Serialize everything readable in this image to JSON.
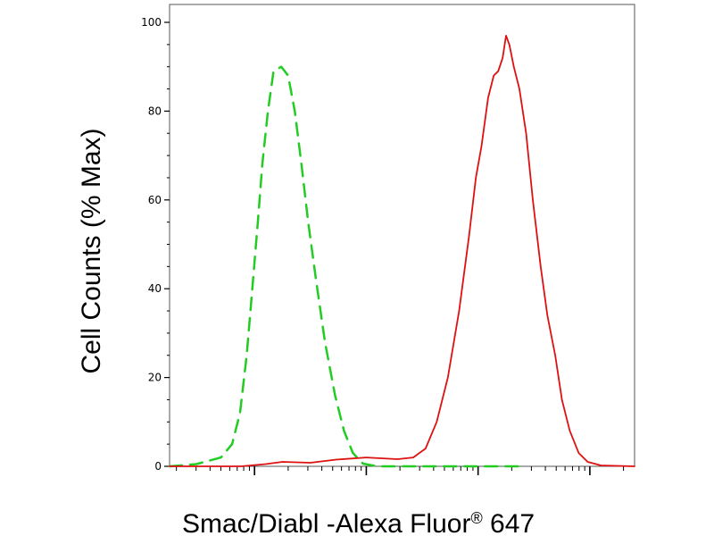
{
  "chart_data": {
    "type": "line",
    "title": "",
    "xlabel": {
      "prefix": "Smac/Diabl -Alexa Fluor",
      "superscript": "®",
      "suffix": " 647"
    },
    "ylabel": "Cell Counts (% Max)",
    "xscale": "log",
    "ylim": [
      0,
      100
    ],
    "yticks": [
      "0",
      "20",
      "40",
      "60",
      "80",
      "100"
    ],
    "grid": false,
    "legend": "none",
    "series": [
      {
        "style": "dashed",
        "color": "#22cc22",
        "points": [
          [
            0.24,
            0
          ],
          [
            0.48,
            0.5
          ],
          [
            0.7,
            2
          ],
          [
            0.8,
            5
          ],
          [
            0.87,
            12
          ],
          [
            0.93,
            25
          ],
          [
            0.98,
            40
          ],
          [
            1.03,
            55
          ],
          [
            1.07,
            68
          ],
          [
            1.12,
            80
          ],
          [
            1.17,
            89
          ],
          [
            1.24,
            90
          ],
          [
            1.3,
            88
          ],
          [
            1.36,
            80
          ],
          [
            1.42,
            68
          ],
          [
            1.48,
            55
          ],
          [
            1.55,
            42
          ],
          [
            1.63,
            28
          ],
          [
            1.72,
            16
          ],
          [
            1.8,
            8
          ],
          [
            1.88,
            3
          ],
          [
            1.97,
            0.6
          ],
          [
            2.1,
            0
          ],
          [
            3.4,
            0
          ]
        ]
      },
      {
        "style": "solid",
        "color": "#dd1111",
        "points": [
          [
            0.24,
            0
          ],
          [
            0.88,
            0
          ],
          [
            1.1,
            0.5
          ],
          [
            1.25,
            1
          ],
          [
            1.5,
            0.8
          ],
          [
            1.73,
            1.5
          ],
          [
            2.0,
            2
          ],
          [
            2.28,
            1.6
          ],
          [
            2.42,
            2
          ],
          [
            2.53,
            4
          ],
          [
            2.63,
            10
          ],
          [
            2.73,
            20
          ],
          [
            2.83,
            35
          ],
          [
            2.92,
            52
          ],
          [
            2.98,
            65
          ],
          [
            3.03,
            72
          ],
          [
            3.09,
            83
          ],
          [
            3.14,
            88
          ],
          [
            3.18,
            89
          ],
          [
            3.22,
            92
          ],
          [
            3.25,
            97
          ],
          [
            3.28,
            95
          ],
          [
            3.32,
            90
          ],
          [
            3.37,
            85
          ],
          [
            3.43,
            75
          ],
          [
            3.49,
            60
          ],
          [
            3.56,
            45
          ],
          [
            3.62,
            34
          ],
          [
            3.69,
            25
          ],
          [
            3.75,
            15
          ],
          [
            3.82,
            8
          ],
          [
            3.9,
            3
          ],
          [
            3.98,
            1
          ],
          [
            4.1,
            0.2
          ],
          [
            4.4,
            0
          ]
        ]
      }
    ]
  }
}
